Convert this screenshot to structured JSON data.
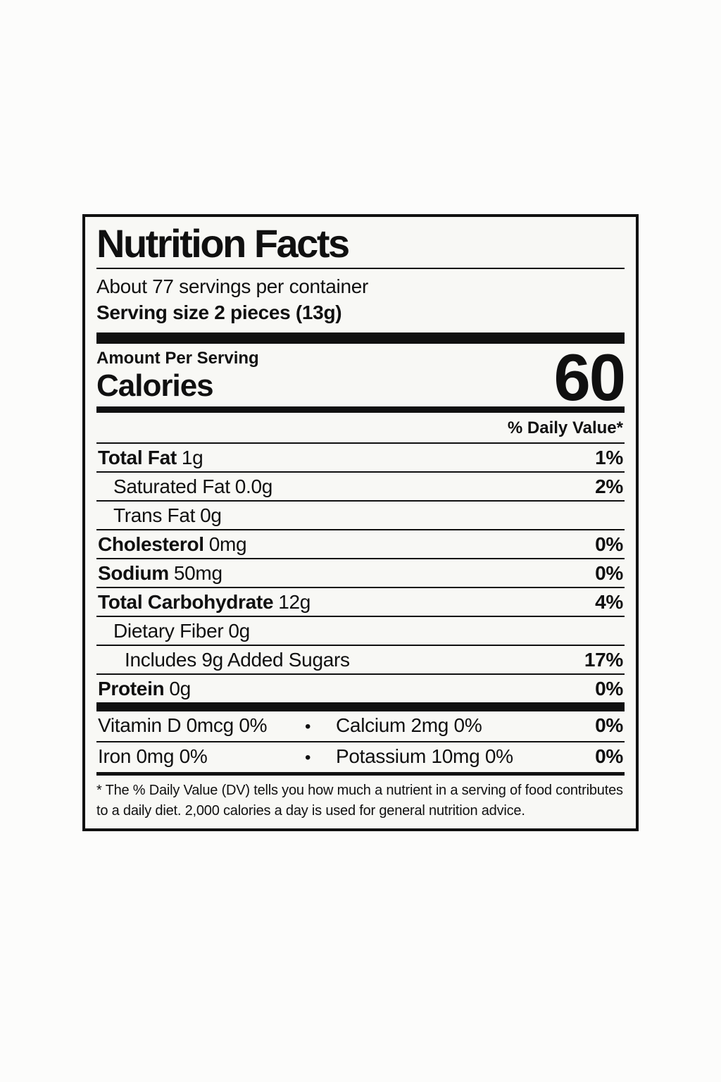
{
  "colors": {
    "ink": "#101010",
    "paper": "#f8f8f5",
    "page_background": "#fcfcfb"
  },
  "label": {
    "title": "Nutrition Facts",
    "servings_per_container": "About 77 servings per container",
    "serving_size_line": "Serving size 2 pieces (13g)",
    "amount_per_serving": "Amount Per Serving",
    "calories_label": "Calories",
    "calories_value": "60",
    "daily_value_header": "% Daily Value*",
    "rows": [
      {
        "name": "Total Fat",
        "amount": "1g",
        "dv": "1%"
      },
      {
        "name": "Saturated Fat",
        "amount": "0.0g",
        "dv": "2%"
      },
      {
        "name": "Trans Fat",
        "amount": "0g",
        "dv": ""
      },
      {
        "name": "Cholesterol",
        "amount": "0mg",
        "dv": "0%"
      },
      {
        "name": "Sodium",
        "amount": "50mg",
        "dv": "0%"
      },
      {
        "name": "Total Carbohydrate",
        "amount": "12g",
        "dv": "4%"
      },
      {
        "name": "Dietary Fiber",
        "amount": "0g",
        "dv": ""
      },
      {
        "name": "Includes 9g Added Sugars",
        "amount": "",
        "dv": "17%"
      },
      {
        "name": "Protein",
        "amount": "0g",
        "dv": "0%"
      }
    ],
    "bullet": "•",
    "micronutrients": [
      {
        "left": "Vitamin D 0mcg 0%",
        "right": "Calcium 2mg  0%",
        "dv": "0%"
      },
      {
        "left": "Iron 0mg 0%",
        "right": "Potassium 10mg 0%",
        "dv": "0%"
      }
    ],
    "footnote": "* The % Daily Value (DV) tells you how much a nutrient in a serving of food contributes to a daily diet. 2,000 calories a day is used for general nutrition advice."
  }
}
